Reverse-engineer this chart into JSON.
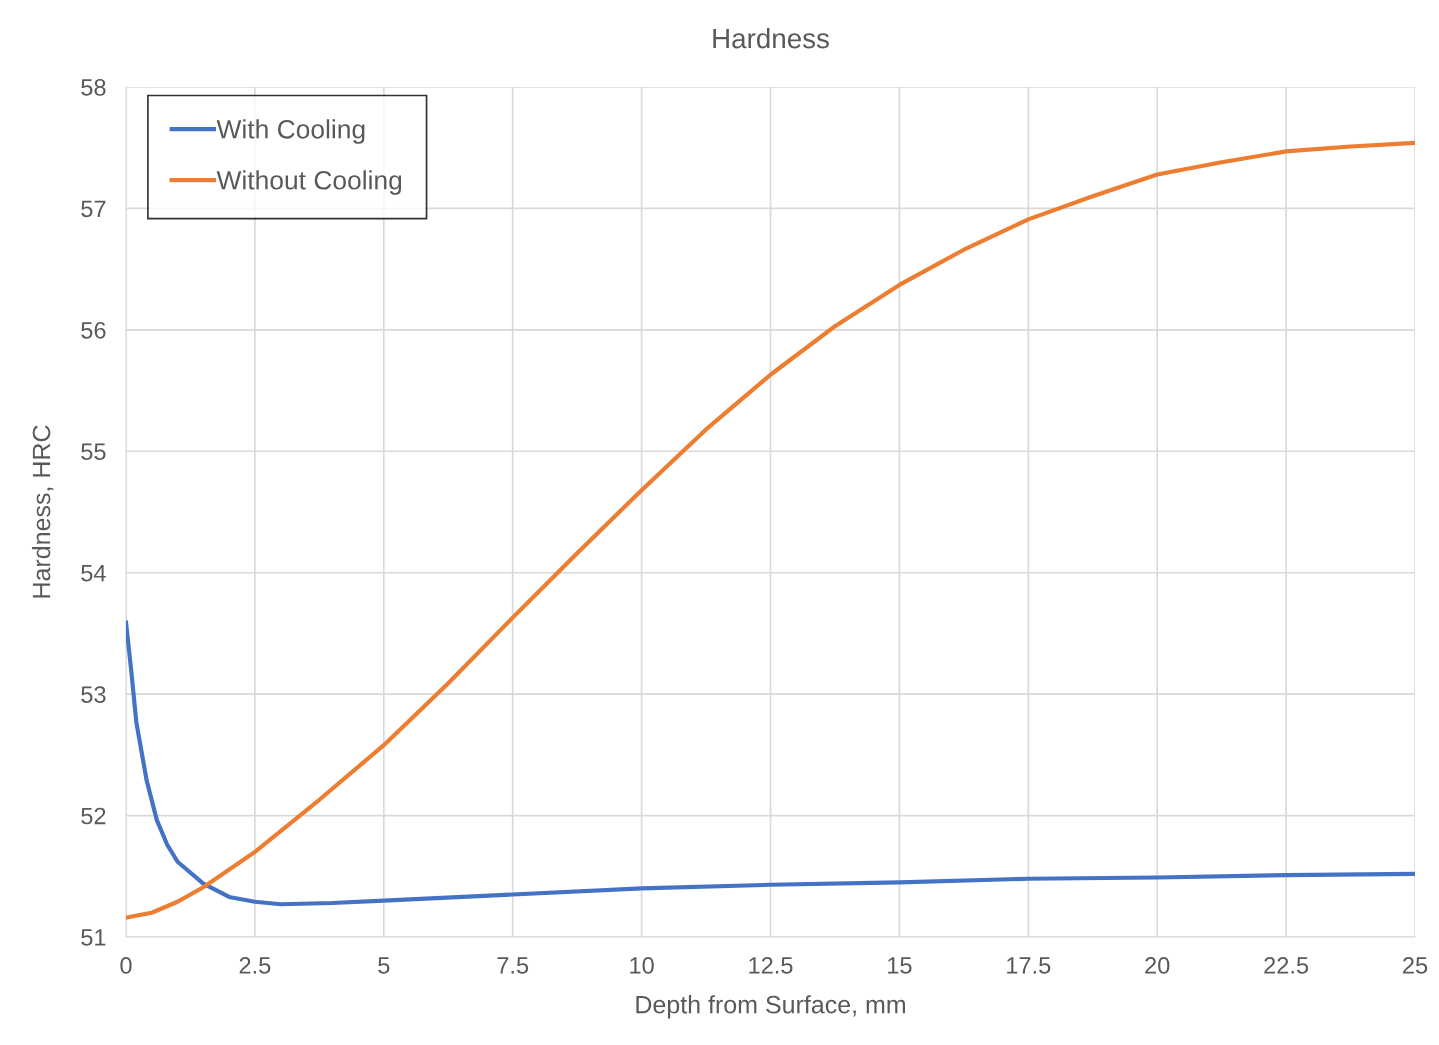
{
  "chart_data": {
    "type": "line",
    "title": "Hardness",
    "xlabel": "Depth from Surface, mm",
    "ylabel": "Hardness, HRC",
    "xlim": [
      0,
      25
    ],
    "ylim": [
      51,
      58
    ],
    "xticks": [
      0,
      2.5,
      5,
      7.5,
      10,
      12.5,
      15,
      17.5,
      20,
      22.5,
      25
    ],
    "yticks": [
      51,
      52,
      53,
      54,
      55,
      56,
      57,
      58
    ],
    "grid": true,
    "legend": "top left",
    "marker": "none",
    "line_style": "solid",
    "series": [
      {
        "name": "With Cooling",
        "color": "#4472c4",
        "x": [
          0,
          0.1,
          0.2,
          0.4,
          0.6,
          0.8,
          1.0,
          1.5,
          2.0,
          2.5,
          3,
          4,
          5,
          7.5,
          10,
          12.5,
          15,
          17.5,
          20,
          22.5,
          25
        ],
        "values": [
          53.59,
          53.2,
          52.77,
          52.29,
          51.96,
          51.76,
          51.62,
          51.44,
          51.33,
          51.29,
          51.27,
          51.28,
          51.3,
          51.35,
          51.4,
          51.43,
          51.45,
          51.48,
          51.49,
          51.51,
          51.52
        ]
      },
      {
        "name": "Without Cooling",
        "color": "#ed7d31",
        "x": [
          0,
          0.5,
          1.0,
          1.5,
          2.5,
          3.75,
          5,
          6.25,
          7.5,
          8.75,
          10,
          11.25,
          12.5,
          13.75,
          15,
          16.25,
          17.5,
          18.75,
          20,
          21.25,
          22.5,
          23.75,
          25
        ],
        "values": [
          51.16,
          51.2,
          51.29,
          51.41,
          51.7,
          52.13,
          52.58,
          53.09,
          53.63,
          54.16,
          54.68,
          55.18,
          55.63,
          56.03,
          56.37,
          56.66,
          56.91,
          57.1,
          57.28,
          57.38,
          57.47,
          57.51,
          57.54
        ]
      }
    ]
  }
}
